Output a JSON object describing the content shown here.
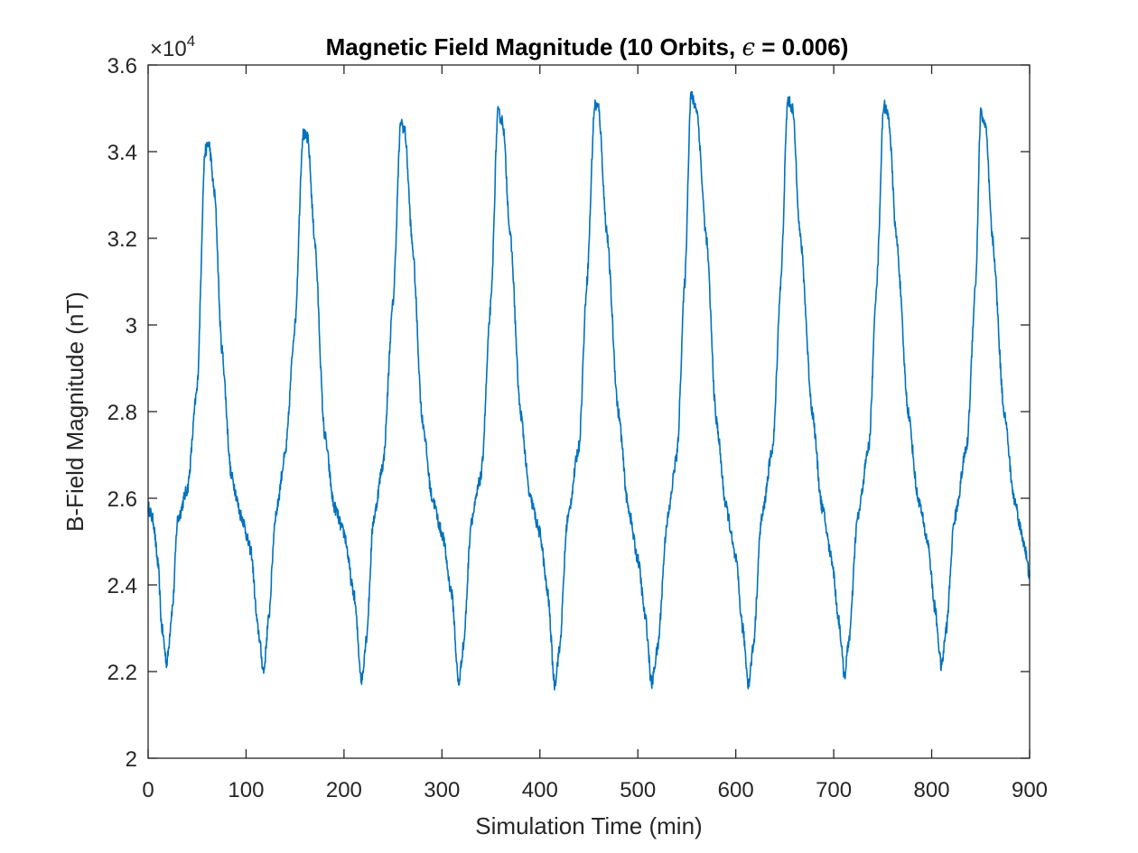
{
  "chart_data": {
    "type": "line",
    "title": "Magnetic Field Magnitude (10 Orbits, ϵ = 0.006)",
    "title_parts": {
      "before": "Magnetic Field Magnitude (10 Orbits, ",
      "symbol": "ϵ",
      "after": " = 0.006)"
    },
    "xlabel": "Simulation Time (min)",
    "ylabel": "B-Field Magnitude (nT)",
    "y_exponent_label": {
      "base": "×10",
      "power": "4"
    },
    "xlim": [
      0,
      900
    ],
    "ylim": [
      2.0,
      3.6
    ],
    "y_scale_factor": 10000,
    "x_ticks": [
      0,
      100,
      200,
      300,
      400,
      500,
      600,
      700,
      800,
      900
    ],
    "x_tick_labels": [
      "0",
      "100",
      "200",
      "300",
      "400",
      "500",
      "600",
      "700",
      "800",
      "900"
    ],
    "y_ticks": [
      2.0,
      2.2,
      2.4,
      2.6,
      2.8,
      3.0,
      3.2,
      3.4,
      3.6
    ],
    "y_tick_labels": [
      "2",
      "2.2",
      "2.4",
      "2.6",
      "2.8",
      "3",
      "3.2",
      "3.4",
      "3.6"
    ],
    "grid": false,
    "box": true,
    "series": [
      {
        "color": "#0072BD",
        "x": [
          0,
          5,
          10,
          14,
          19,
          25,
          30,
          40,
          50,
          58,
          62,
          68,
          75,
          85,
          95,
          105,
          112,
          118,
          123,
          130,
          140,
          150,
          158,
          163,
          170,
          180,
          190,
          200,
          210,
          218,
          223,
          230,
          240,
          250,
          258,
          262,
          270,
          280,
          290,
          300,
          310,
          317,
          322,
          330,
          340,
          350,
          357,
          362,
          370,
          380,
          390,
          400,
          408,
          415,
          420,
          428,
          440,
          448,
          456,
          460,
          468,
          480,
          490,
          500,
          508,
          514,
          520,
          530,
          540,
          548,
          554,
          560,
          570,
          580,
          590,
          600,
          607,
          613,
          618,
          626,
          638,
          646,
          653,
          658,
          666,
          678,
          688,
          698,
          705,
          711,
          716,
          724,
          736,
          744,
          751,
          756,
          764,
          776,
          786,
          796,
          803,
          810,
          815,
          823,
          836,
          845,
          850,
          855,
          862,
          874,
          884,
          894,
          900
        ],
        "y": [
          2.58,
          2.55,
          2.45,
          2.3,
          2.22,
          2.35,
          2.55,
          2.62,
          2.85,
          3.4,
          3.42,
          3.3,
          2.95,
          2.65,
          2.56,
          2.48,
          2.3,
          2.2,
          2.32,
          2.56,
          2.7,
          3.0,
          3.44,
          3.43,
          3.2,
          2.75,
          2.58,
          2.52,
          2.38,
          2.18,
          2.28,
          2.55,
          2.68,
          3.05,
          3.47,
          3.45,
          3.18,
          2.78,
          2.6,
          2.52,
          2.38,
          2.17,
          2.26,
          2.55,
          2.65,
          3.05,
          3.49,
          3.47,
          3.2,
          2.8,
          2.6,
          2.52,
          2.38,
          2.17,
          2.25,
          2.55,
          2.72,
          3.1,
          3.51,
          3.5,
          3.22,
          2.8,
          2.58,
          2.46,
          2.32,
          2.17,
          2.25,
          2.55,
          2.7,
          3.1,
          3.53,
          3.5,
          3.2,
          2.78,
          2.58,
          2.46,
          2.3,
          2.17,
          2.26,
          2.55,
          2.72,
          3.1,
          3.52,
          3.5,
          3.2,
          2.8,
          2.58,
          2.46,
          2.32,
          2.19,
          2.28,
          2.55,
          2.72,
          3.1,
          3.51,
          3.48,
          3.2,
          2.8,
          2.6,
          2.5,
          2.35,
          2.21,
          2.3,
          2.55,
          2.72,
          3.1,
          3.49,
          3.46,
          3.2,
          2.8,
          2.6,
          2.5,
          2.42
        ]
      }
    ]
  }
}
